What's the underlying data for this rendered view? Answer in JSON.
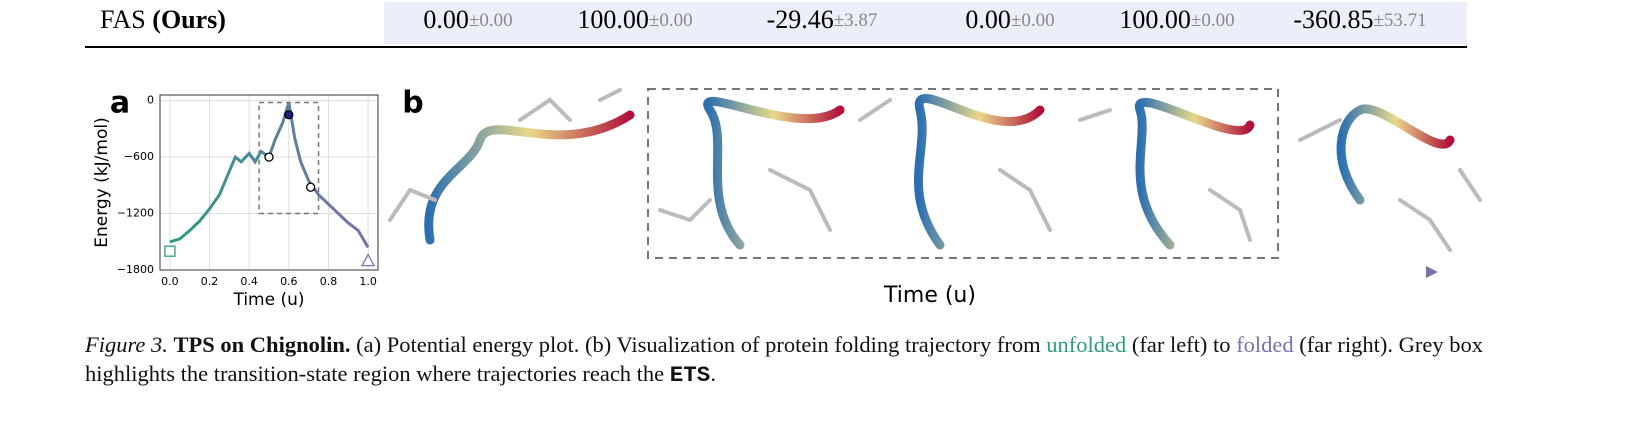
{
  "table": {
    "method": "FAS",
    "method_tag": "(Ours)",
    "cells": [
      {
        "mean": "0.00",
        "std": "±0.00"
      },
      {
        "mean": "100.00",
        "std": "±0.00"
      },
      {
        "mean": "-29.46",
        "std": "±3.87"
      },
      {
        "mean": "0.00",
        "std": "±0.00"
      },
      {
        "mean": "100.00",
        "std": "±0.00"
      },
      {
        "mean": "-360.85",
        "std": "±53.71"
      }
    ]
  },
  "panel_labels": [
    "a",
    "b"
  ],
  "chart_data": {
    "type": "line",
    "x_label": "Time (u)",
    "y_label": "Energy (kJ/mol)",
    "x": [
      0,
      0.05,
      0.1,
      0.15,
      0.2,
      0.25,
      0.3,
      0.33,
      0.36,
      0.4,
      0.43,
      0.46,
      0.5,
      0.53,
      0.57,
      0.6,
      0.63,
      0.66,
      0.7,
      0.75,
      0.8,
      0.85,
      0.9,
      0.95,
      1.0
    ],
    "series": [
      {
        "values": [
          -1500,
          -1470,
          -1380,
          -1280,
          -1150,
          -1000,
          -750,
          -600,
          -650,
          -560,
          -650,
          -540,
          -600,
          -420,
          -230,
          -20,
          -400,
          -650,
          -850,
          -1000,
          -1100,
          -1200,
          -1300,
          -1380,
          -1560
        ]
      }
    ],
    "colors": [
      "#2a9d80",
      "#7b6fb0"
    ],
    "markers": [
      {
        "x": 0,
        "y": -1600,
        "shape": "square",
        "color": "#2a9d80"
      },
      {
        "x": 0.5,
        "y": -600,
        "shape": "circle",
        "color": "#ffffff"
      },
      {
        "x": 0.6,
        "y": -150,
        "shape": "circle",
        "color": "#1a237e"
      },
      {
        "x": 0.71,
        "y": -920,
        "shape": "circle",
        "color": "#ffffff"
      },
      {
        "x": 1.0,
        "y": -1700,
        "shape": "triangle",
        "color": "#7b6fb0"
      }
    ],
    "highlight": {
      "x": [
        0.45,
        0.75
      ],
      "y": [
        -1200,
        -20
      ]
    },
    "xlim": [
      -0.05,
      1.05
    ],
    "ylim": [
      -1800,
      60
    ],
    "xticks": [
      {
        "value": 0,
        "label": "0.0"
      },
      0.2,
      0.4,
      0.6,
      0.8,
      {
        "value": 1,
        "label": "1.0"
      }
    ],
    "yticks": [
      {
        "value": -1800,
        "label": "−1800"
      },
      {
        "value": -1200,
        "label": "−1200"
      },
      {
        "value": -600,
        "label": "−600"
      },
      0
    ],
    "grid": true
  },
  "panel_b": {
    "axis_label": "Time (u)"
  },
  "caption": {
    "label": "Figure 3.",
    "title": "TPS on Chignolin.",
    "text1": "(a) Potential energy plot. (b) Visualization of protein folding trajectory from",
    "unfolded": "unfolded",
    "text2": "(far left) to",
    "folded": "folded",
    "text3": "(far right). Grey box highlights the transition-state region where trajectories reach the",
    "ets": "ETS",
    "end": "."
  }
}
